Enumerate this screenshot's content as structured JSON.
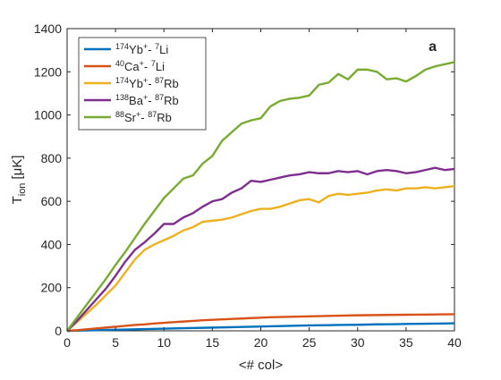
{
  "chart_data": {
    "type": "line",
    "panel_label": "a",
    "xlabel": "<# col>",
    "ylabel_main": "T",
    "ylabel_sub": "ion",
    "ylabel_unit": "[μK]",
    "xlim": [
      0,
      40
    ],
    "ylim": [
      0,
      1400
    ],
    "xticks": [
      0,
      5,
      10,
      15,
      20,
      25,
      30,
      35,
      40
    ],
    "yticks": [
      0,
      200,
      400,
      600,
      800,
      1000,
      1200,
      1400
    ],
    "grid": false,
    "legend_position": "top-left",
    "x": [
      0,
      1,
      2,
      3,
      4,
      5,
      6,
      7,
      8,
      9,
      10,
      11,
      12,
      13,
      14,
      15,
      16,
      17,
      18,
      19,
      20,
      21,
      22,
      23,
      24,
      25,
      26,
      27,
      28,
      29,
      30,
      31,
      32,
      33,
      34,
      35,
      36,
      37,
      38,
      39,
      40
    ],
    "series": [
      {
        "name": "174Yb+- 7Li",
        "legend": {
          "sup1": "174",
          "el1": "Yb",
          "ch1": "+",
          "sep": "- ",
          "sup2": "7",
          "el2": "Li"
        },
        "color": "#0072BD",
        "values": [
          0,
          1,
          2,
          3,
          4,
          5,
          6,
          7,
          8,
          9,
          10,
          11,
          12,
          13,
          14,
          15,
          16,
          17,
          18,
          19,
          20,
          21,
          22,
          23,
          24,
          25,
          25.5,
          26,
          27,
          27.5,
          28,
          29,
          30,
          30.5,
          31,
          32,
          32.5,
          33,
          33.5,
          34,
          35
        ]
      },
      {
        "name": "40Ca+- 7Li",
        "legend": {
          "sup1": "40",
          "el1": "Ca",
          "ch1": "+",
          "sep": "- ",
          "sup2": "7",
          "el2": "Li"
        },
        "color": "#D95319",
        "values": [
          0,
          3,
          7,
          11,
          15,
          19,
          23,
          27,
          30,
          34,
          37,
          40,
          43,
          46,
          49,
          51,
          53,
          55,
          57,
          59,
          61,
          63,
          64,
          65,
          66,
          67,
          68,
          69,
          70,
          71,
          72,
          72.5,
          73,
          73.5,
          74,
          74.5,
          75,
          75.5,
          76,
          76.5,
          77
        ]
      },
      {
        "name": "174Yb+- 87Rb",
        "legend": {
          "sup1": "174",
          "el1": "Yb",
          "ch1": "+",
          "sep": "- ",
          "sup2": "87",
          "el2": "Rb"
        },
        "color": "#EDB120",
        "values": [
          0,
          40,
          80,
          120,
          165,
          210,
          270,
          330,
          375,
          400,
          420,
          440,
          465,
          480,
          505,
          510,
          515,
          525,
          540,
          555,
          565,
          565,
          575,
          590,
          605,
          610,
          595,
          625,
          635,
          630,
          635,
          640,
          650,
          655,
          650,
          660,
          660,
          665,
          660,
          665,
          670
        ]
      },
      {
        "name": "138Ba+- 87Rb",
        "legend": {
          "sup1": "138",
          "el1": "Ba",
          "ch1": "+",
          "sep": "- ",
          "sup2": "87",
          "el2": "Rb"
        },
        "color": "#7E2F8E",
        "values": [
          0,
          45,
          95,
          145,
          195,
          255,
          320,
          375,
          410,
          450,
          495,
          495,
          525,
          545,
          575,
          600,
          610,
          640,
          660,
          695,
          690,
          700,
          710,
          720,
          725,
          735,
          730,
          730,
          740,
          735,
          740,
          725,
          740,
          745,
          740,
          730,
          735,
          745,
          755,
          745,
          750
        ]
      },
      {
        "name": "88Sr+- 87Rb",
        "legend": {
          "sup1": "88",
          "el1": "Sr",
          "ch1": "+",
          "sep": "- ",
          "sup2": "87",
          "el2": "Rb"
        },
        "color": "#77AC30",
        "values": [
          0,
          60,
          120,
          180,
          240,
          305,
          365,
          430,
          495,
          555,
          615,
          660,
          705,
          720,
          775,
          810,
          880,
          920,
          960,
          975,
          985,
          1040,
          1065,
          1075,
          1080,
          1090,
          1140,
          1150,
          1190,
          1165,
          1210,
          1210,
          1200,
          1165,
          1170,
          1155,
          1180,
          1210,
          1225,
          1235,
          1245
        ]
      }
    ]
  }
}
